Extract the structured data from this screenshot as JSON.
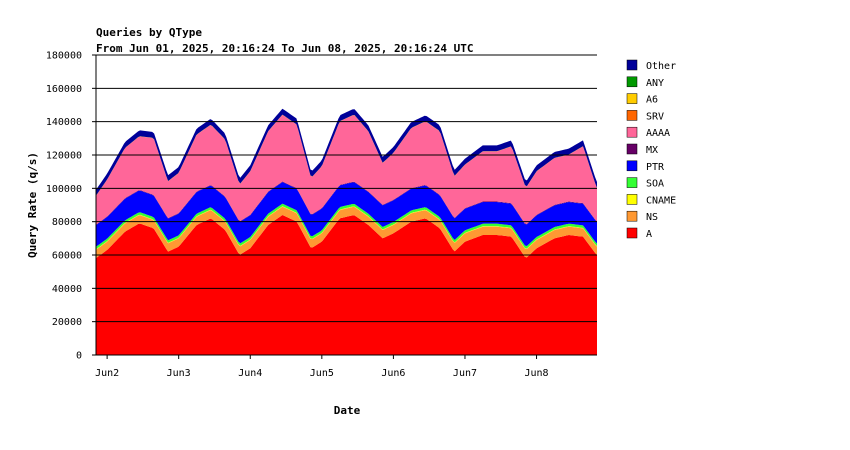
{
  "chart_data": {
    "type": "area",
    "title": "Queries by QType",
    "subtitle": "From Jun 01, 2025, 20:16:24 To Jun 08, 2025, 20:16:24 UTC",
    "xlabel": "Date",
    "ylabel": "Query Rate (q/s)",
    "ylim": [
      0,
      180000
    ],
    "y_ticks": [
      "0",
      "20000",
      "40000",
      "60000",
      "80000",
      "100000",
      "120000",
      "140000",
      "160000",
      "180000"
    ],
    "x_start_day": 1.8447,
    "x_end_day": 8.8447,
    "x_ticks": [
      {
        "label": "Jun2",
        "day": 2
      },
      {
        "label": "Jun3",
        "day": 3
      },
      {
        "label": "Jun4",
        "day": 4
      },
      {
        "label": "Jun5",
        "day": 5
      },
      {
        "label": "Jun6",
        "day": 6
      },
      {
        "label": "Jun7",
        "day": 7
      },
      {
        "label": "Jun8",
        "day": 8
      }
    ],
    "grid": "horizontal",
    "legend_position": "right",
    "stacked_order": [
      "A",
      "NS",
      "CNAME",
      "SOA",
      "PTR",
      "MX",
      "AAAA",
      "SRV",
      "A6",
      "ANY",
      "Other"
    ],
    "legend_order": [
      "Other",
      "ANY",
      "A6",
      "SRV",
      "AAAA",
      "MX",
      "PTR",
      "SOA",
      "CNAME",
      "NS",
      "A"
    ],
    "colors": {
      "A": "#ff0000",
      "NS": "#ff9933",
      "CNAME": "#ffff00",
      "SOA": "#33ff33",
      "PTR": "#0000ff",
      "MX": "#660066",
      "AAAA": "#ff6699",
      "SRV": "#ff6600",
      "A6": "#ffcc00",
      "ANY": "#009900",
      "Other": "#000099"
    },
    "series": [
      {
        "name": "A",
        "x": [
          1.84,
          2.0,
          2.25,
          2.45,
          2.65,
          2.85,
          3.0,
          3.25,
          3.45,
          3.65,
          3.85,
          4.0,
          4.25,
          4.45,
          4.65,
          4.85,
          5.0,
          5.25,
          5.45,
          5.65,
          5.85,
          6.0,
          6.25,
          6.45,
          6.65,
          6.85,
          7.0,
          7.25,
          7.45,
          7.65,
          7.85,
          8.0,
          8.25,
          8.45,
          8.65,
          8.84
        ],
        "values": [
          58000,
          63000,
          74000,
          79000,
          76000,
          62000,
          65000,
          78000,
          82000,
          75000,
          60000,
          64000,
          78000,
          84000,
          80000,
          64000,
          68000,
          82000,
          84000,
          78000,
          70000,
          73000,
          80000,
          82000,
          76000,
          62000,
          68000,
          72000,
          72000,
          71000,
          58000,
          64000,
          70000,
          72000,
          71000,
          60000
        ]
      },
      {
        "name": "NS",
        "x": [
          1.84,
          8.84
        ],
        "values": [
          5000,
          5000
        ]
      },
      {
        "name": "CNAME",
        "x": [
          1.84,
          8.84
        ],
        "values": [
          300,
          300
        ]
      },
      {
        "name": "SOA",
        "x": [
          1.84,
          8.84
        ],
        "values": [
          1500,
          1500
        ]
      },
      {
        "name": "PTR",
        "x": [
          1.84,
          8.84
        ],
        "values": [
          13000,
          13000
        ]
      },
      {
        "name": "MX",
        "x": [
          1.84,
          8.84
        ],
        "values": [
          300,
          300
        ]
      },
      {
        "name": "AAAA",
        "x": [
          1.84,
          2.0,
          2.25,
          2.45,
          2.65,
          2.85,
          3.0,
          3.25,
          3.45,
          3.65,
          3.85,
          4.0,
          4.25,
          4.45,
          4.65,
          4.85,
          5.0,
          5.25,
          5.45,
          5.65,
          5.85,
          6.0,
          6.25,
          6.45,
          6.65,
          6.85,
          7.0,
          7.25,
          7.45,
          7.65,
          7.85,
          8.0,
          8.25,
          8.45,
          8.65,
          8.84
        ],
        "values": [
          17000,
          22000,
          30000,
          32000,
          34000,
          22000,
          24000,
          34000,
          36000,
          34000,
          22000,
          26000,
          36000,
          40000,
          38000,
          22000,
          25000,
          38000,
          40000,
          36000,
          25000,
          28000,
          36000,
          38000,
          38000,
          25000,
          26000,
          30000,
          30000,
          34000,
          22000,
          26000,
          28000,
          28000,
          34000,
          20000
        ]
      },
      {
        "name": "SRV",
        "x": [
          1.84,
          8.84
        ],
        "values": [
          100,
          100
        ]
      },
      {
        "name": "A6",
        "x": [
          1.84,
          8.84
        ],
        "values": [
          50,
          50
        ]
      },
      {
        "name": "ANY",
        "x": [
          1.84,
          8.84
        ],
        "values": [
          50,
          50
        ]
      },
      {
        "name": "Other",
        "x": [
          1.84,
          8.84
        ],
        "values": [
          3500,
          3500
        ]
      }
    ]
  }
}
